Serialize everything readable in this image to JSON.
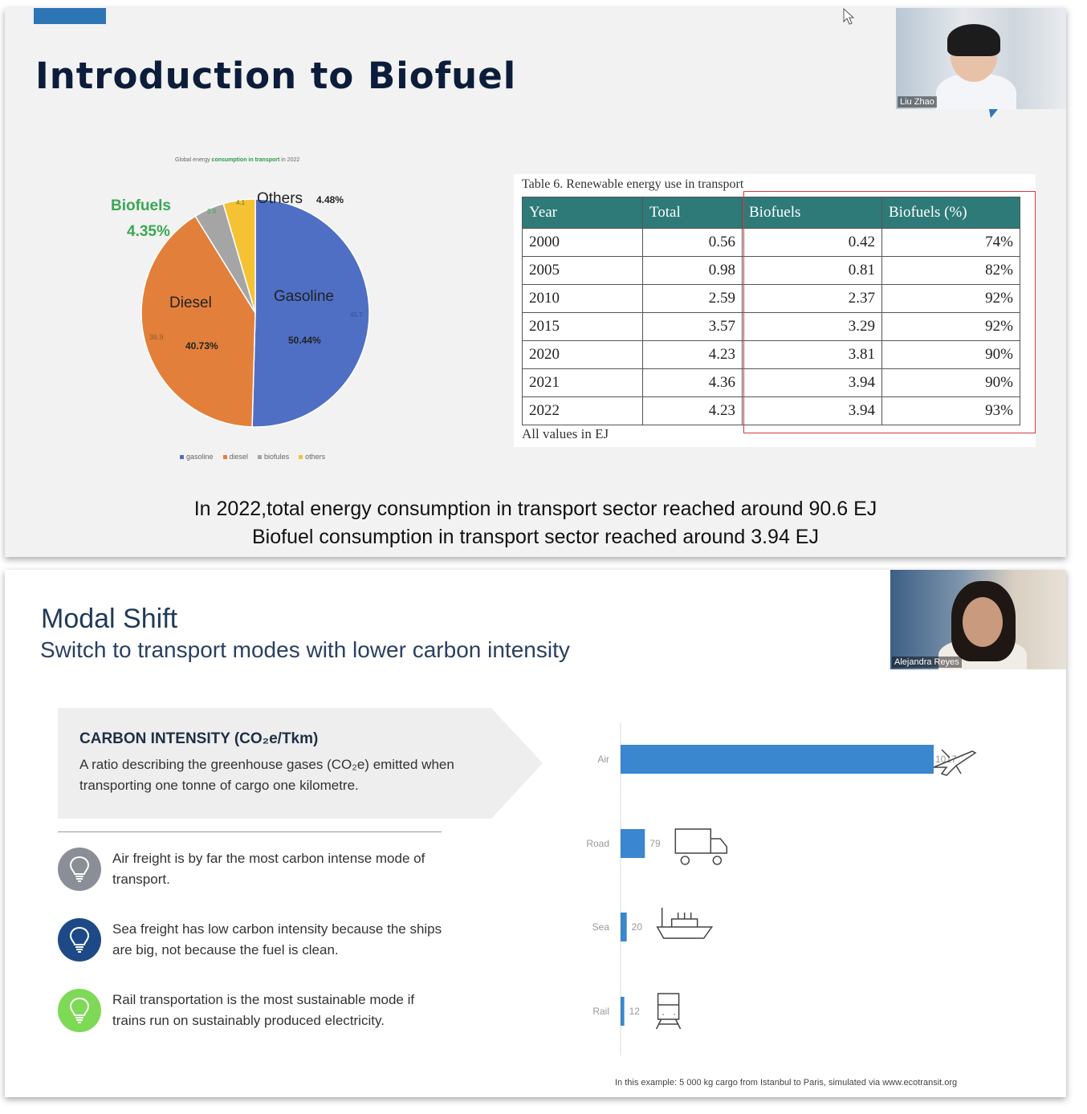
{
  "slide1": {
    "title": "Introduction to Biofuel",
    "webcam_name": "Liu Zhao",
    "pie_caption_pre": "Global energy",
    "pie_caption_bold": "consumption in transport",
    "pie_caption_post": "in 2022",
    "pie_labels": {
      "biofuels": "Biofuels",
      "biofuels_pct": "4.35%",
      "others": "Others",
      "others_pct": "4.48%",
      "diesel": "Diesel",
      "diesel_pct": "40.73%",
      "diesel_val": "36.9",
      "gasoline": "Gasoline",
      "gasoline_pct": "50.44%",
      "gasoline_val": "45.7",
      "biofuels_val": "3.9",
      "others_val": "4.1"
    },
    "pie_legend": [
      "gasoline",
      "diesel",
      "biofules",
      "others"
    ],
    "table_caption": "Table 6. Renewable energy use in transport",
    "table_headers": [
      "Year",
      "Total",
      "Biofuels",
      "Biofuels (%)"
    ],
    "table_rows": [
      [
        "2000",
        "0.56",
        "0.42",
        "74%"
      ],
      [
        "2005",
        "0.98",
        "0.81",
        "82%"
      ],
      [
        "2010",
        "2.59",
        "2.37",
        "92%"
      ],
      [
        "2015",
        "3.57",
        "3.29",
        "92%"
      ],
      [
        "2020",
        "4.23",
        "3.81",
        "90%"
      ],
      [
        "2021",
        "4.36",
        "3.94",
        "90%"
      ],
      [
        "2022",
        "4.23",
        "3.94",
        "93%"
      ]
    ],
    "table_note": "All values in EJ",
    "summary_line1": "In 2022,total energy consumption in transport sector reached around 90.6 EJ",
    "summary_line2": "Biofuel consumption in transport sector reached around 3.94 EJ",
    "colors": {
      "gasoline": "#4f6fc4",
      "diesel": "#e2803b",
      "biofuels": "#a5a5a5",
      "others": "#f4c233"
    }
  },
  "slide2": {
    "title": "Modal Shift",
    "subtitle": "Switch to transport modes with lower carbon intensity",
    "webcam_name": "Alejandra Reyes",
    "ci_heading": "CARBON INTENSITY (CO₂e/Tkm)",
    "ci_text": "A ratio describing the greenhouse gases (CO₂e) emitted when transporting one tonne of cargo one kilometre.",
    "tips": [
      {
        "text": "Air freight is by far the most carbon intense mode of transport.",
        "color": "#8a8e96"
      },
      {
        "text": "Sea freight has low carbon intensity because the ships are big, not because the fuel is clean.",
        "color": "#1d4a87"
      },
      {
        "text": "Rail transportation is the most sustainable mode if trains run on sustainably produced electricity.",
        "color": "#7ed957"
      }
    ],
    "footnote": "In this example: 5 000 kg cargo from Istanbul to Paris, simulated via www.ecotransit.org"
  },
  "chart_data": [
    {
      "type": "pie",
      "title": "Global energy consumption in transport in 2022",
      "categories": [
        "gasoline",
        "diesel",
        "biofules",
        "others"
      ],
      "values": [
        45.7,
        36.9,
        3.9,
        4.1
      ],
      "percent_labels": [
        "50.44%",
        "40.73%",
        "4.35%",
        "4.48%"
      ],
      "legend": "bottom"
    },
    {
      "type": "bar",
      "orientation": "horizontal",
      "categories": [
        "Air",
        "Road",
        "Sea",
        "Rail"
      ],
      "values": [
        1017,
        79,
        20,
        12
      ],
      "data_labels": [
        "1017",
        "79",
        "20",
        "12"
      ],
      "color": "#3a86cf",
      "icons": [
        "airplane-icon",
        "truck-icon",
        "ship-icon",
        "train-icon"
      ]
    }
  ]
}
